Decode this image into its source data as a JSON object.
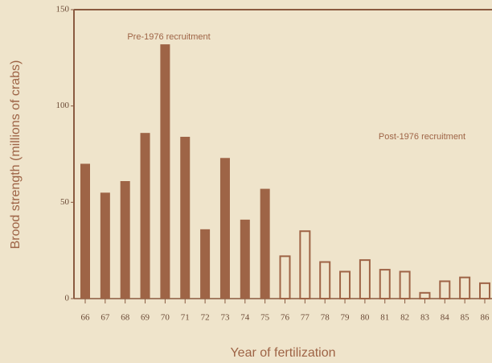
{
  "chart_data": {
    "type": "bar",
    "x_label": "Year of fertilization",
    "y_label": "Brood strength (millions of crabs)",
    "categories": [
      "66",
      "67",
      "68",
      "69",
      "70",
      "71",
      "72",
      "73",
      "74",
      "75",
      "76",
      "77",
      "78",
      "79",
      "80",
      "81",
      "82",
      "83",
      "84",
      "85",
      "86"
    ],
    "series": [
      {
        "name": "Pre-1976 recruitment",
        "color": "#9e6446",
        "fill": true,
        "values": [
          70,
          55,
          61,
          86,
          132,
          84,
          36,
          73,
          41,
          57,
          null,
          null,
          null,
          null,
          null,
          null,
          null,
          null,
          null,
          null,
          null
        ]
      },
      {
        "name": "Post-1976 recruitment",
        "color": "#9e6446",
        "fill": false,
        "values": [
          null,
          null,
          null,
          null,
          null,
          null,
          null,
          null,
          null,
          null,
          22,
          35,
          19,
          14,
          20,
          15,
          14,
          3,
          9,
          11,
          8
        ]
      }
    ],
    "ylim": [
      0,
      150
    ],
    "yticks": [
      0,
      50,
      100,
      150
    ]
  }
}
